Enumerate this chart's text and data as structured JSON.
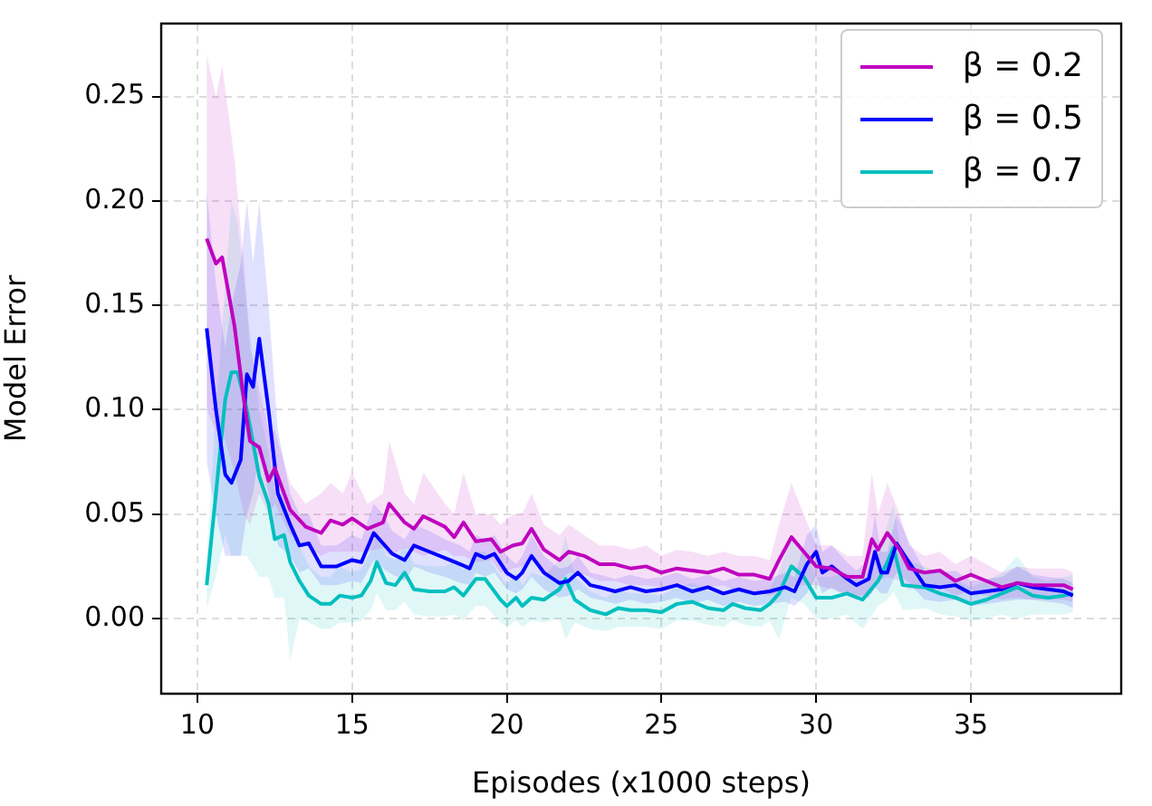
{
  "chart_data": {
    "type": "line",
    "xlabel": "Episodes (x1000 steps)",
    "ylabel": "Model Error",
    "xlim": [
      8.83,
      39.86
    ],
    "ylim": [
      -0.036,
      0.285
    ],
    "xticks": [
      10,
      15,
      20,
      25,
      30,
      35
    ],
    "yticks": [
      {
        "value": 0,
        "label": "0.00"
      },
      {
        "value": 0.05,
        "label": "0.05"
      },
      {
        "value": 0.1,
        "label": "0.10"
      },
      {
        "value": 0.15,
        "label": "0.15"
      },
      {
        "value": 0.2,
        "label": "0.20"
      },
      {
        "value": 0.25,
        "label": "0.25"
      }
    ],
    "grid": true,
    "legend": "top right",
    "line_style": "solid",
    "marker": "none",
    "series": [
      {
        "name": "β = 0.2",
        "color": "#bf00bf",
        "x": [
          10.3,
          10.6,
          10.8,
          11.2,
          11.5,
          11.7,
          12.0,
          12.3,
          12.5,
          13,
          13.5,
          14,
          14.3,
          14.7,
          15,
          15.5,
          16,
          16.2,
          16.7,
          17,
          17.3,
          18,
          18.3,
          18.6,
          19,
          19.5,
          19.8,
          20.2,
          20.5,
          20.8,
          21.2,
          21.7,
          22,
          22.5,
          23,
          23.5,
          24,
          24.5,
          25,
          25.5,
          26,
          26.5,
          27,
          27.5,
          28,
          28.5,
          28.8,
          29.2,
          29.6,
          30,
          30.5,
          31,
          31.5,
          31.8,
          32,
          32.3,
          32.7,
          33,
          33.5,
          34,
          34.5,
          35,
          35.5,
          36,
          36.5,
          37,
          37.5,
          38,
          38.3
        ],
        "values": [
          0.182,
          0.17,
          0.173,
          0.14,
          0.105,
          0.085,
          0.082,
          0.066,
          0.072,
          0.052,
          0.044,
          0.041,
          0.047,
          0.045,
          0.048,
          0.043,
          0.046,
          0.055,
          0.046,
          0.043,
          0.049,
          0.044,
          0.039,
          0.046,
          0.037,
          0.038,
          0.032,
          0.035,
          0.036,
          0.043,
          0.033,
          0.028,
          0.032,
          0.03,
          0.026,
          0.026,
          0.024,
          0.025,
          0.022,
          0.024,
          0.023,
          0.022,
          0.024,
          0.021,
          0.021,
          0.019,
          0.028,
          0.039,
          0.032,
          0.025,
          0.024,
          0.02,
          0.02,
          0.038,
          0.033,
          0.041,
          0.033,
          0.024,
          0.022,
          0.023,
          0.018,
          0.021,
          0.018,
          0.015,
          0.017,
          0.016,
          0.016,
          0.016,
          0.014
        ],
        "upper": [
          0.27,
          0.25,
          0.265,
          0.22,
          0.17,
          0.13,
          0.11,
          0.09,
          0.09,
          0.065,
          0.055,
          0.06,
          0.065,
          0.06,
          0.07,
          0.055,
          0.06,
          0.085,
          0.06,
          0.055,
          0.07,
          0.055,
          0.05,
          0.07,
          0.05,
          0.05,
          0.045,
          0.05,
          0.05,
          0.06,
          0.045,
          0.04,
          0.045,
          0.04,
          0.035,
          0.035,
          0.033,
          0.035,
          0.03,
          0.033,
          0.032,
          0.03,
          0.032,
          0.03,
          0.03,
          0.028,
          0.045,
          0.065,
          0.05,
          0.035,
          0.035,
          0.03,
          0.03,
          0.07,
          0.05,
          0.065,
          0.05,
          0.035,
          0.03,
          0.032,
          0.026,
          0.03,
          0.026,
          0.022,
          0.025,
          0.024,
          0.024,
          0.024,
          0.022
        ],
        "lower": [
          0.1,
          0.09,
          0.09,
          0.07,
          0.05,
          0.045,
          0.06,
          0.05,
          0.055,
          0.04,
          0.035,
          0.03,
          0.032,
          0.032,
          0.032,
          0.032,
          0.034,
          0.03,
          0.034,
          0.032,
          0.03,
          0.033,
          0.03,
          0.03,
          0.027,
          0.028,
          0.022,
          0.024,
          0.025,
          0.028,
          0.023,
          0.018,
          0.022,
          0.021,
          0.018,
          0.018,
          0.016,
          0.016,
          0.015,
          0.016,
          0.015,
          0.015,
          0.016,
          0.013,
          0.013,
          0.011,
          0.012,
          0.015,
          0.016,
          0.016,
          0.014,
          0.011,
          0.011,
          0.012,
          0.018,
          0.02,
          0.018,
          0.014,
          0.014,
          0.015,
          0.011,
          0.013,
          0.011,
          0.009,
          0.01,
          0.009,
          0.009,
          0.009,
          0.008
        ]
      },
      {
        "name": "β = 0.5",
        "color": "#0000ff",
        "x": [
          10.3,
          10.6,
          10.9,
          11.1,
          11.4,
          11.6,
          11.8,
          12.0,
          12.3,
          12.6,
          13,
          13.3,
          13.6,
          14,
          14.5,
          15,
          15.3,
          15.7,
          16,
          16.3,
          16.7,
          17,
          17.5,
          18,
          18.5,
          18.8,
          19,
          19.3,
          19.6,
          20,
          20.3,
          20.5,
          20.8,
          21.2,
          21.7,
          22,
          22.3,
          22.7,
          23,
          23.5,
          24,
          24.5,
          25,
          25.5,
          26,
          26.5,
          27,
          27.5,
          28,
          28.5,
          29,
          29.3,
          29.7,
          30,
          30.2,
          30.5,
          31,
          31.3,
          31.7,
          31.9,
          32.1,
          32.3,
          32.6,
          33,
          33.5,
          34,
          34.5,
          35,
          35.5,
          36,
          36.5,
          37,
          37.5,
          38,
          38.3
        ],
        "values": [
          0.139,
          0.1,
          0.069,
          0.065,
          0.076,
          0.117,
          0.111,
          0.134,
          0.1,
          0.06,
          0.045,
          0.035,
          0.036,
          0.025,
          0.025,
          0.028,
          0.027,
          0.041,
          0.036,
          0.031,
          0.028,
          0.035,
          0.032,
          0.029,
          0.026,
          0.024,
          0.031,
          0.029,
          0.031,
          0.022,
          0.019,
          0.022,
          0.03,
          0.022,
          0.017,
          0.018,
          0.022,
          0.016,
          0.015,
          0.013,
          0.015,
          0.013,
          0.014,
          0.016,
          0.013,
          0.015,
          0.012,
          0.014,
          0.012,
          0.013,
          0.015,
          0.013,
          0.026,
          0.032,
          0.022,
          0.025,
          0.019,
          0.016,
          0.019,
          0.032,
          0.022,
          0.022,
          0.036,
          0.027,
          0.016,
          0.015,
          0.016,
          0.012,
          0.013,
          0.014,
          0.017,
          0.015,
          0.014,
          0.013,
          0.011
        ],
        "upper": [
          0.205,
          0.16,
          0.13,
          0.15,
          0.17,
          0.2,
          0.17,
          0.2,
          0.15,
          0.09,
          0.06,
          0.05,
          0.05,
          0.035,
          0.035,
          0.04,
          0.038,
          0.055,
          0.05,
          0.042,
          0.038,
          0.045,
          0.042,
          0.038,
          0.035,
          0.032,
          0.04,
          0.038,
          0.04,
          0.03,
          0.026,
          0.03,
          0.04,
          0.03,
          0.024,
          0.025,
          0.03,
          0.022,
          0.021,
          0.019,
          0.021,
          0.019,
          0.02,
          0.022,
          0.019,
          0.021,
          0.018,
          0.02,
          0.018,
          0.019,
          0.022,
          0.02,
          0.04,
          0.045,
          0.032,
          0.035,
          0.027,
          0.023,
          0.028,
          0.05,
          0.032,
          0.032,
          0.05,
          0.037,
          0.023,
          0.022,
          0.023,
          0.018,
          0.019,
          0.02,
          0.025,
          0.021,
          0.02,
          0.019,
          0.017
        ],
        "lower": [
          0.075,
          0.05,
          0.03,
          0.03,
          0.03,
          0.05,
          0.06,
          0.08,
          0.06,
          0.035,
          0.03,
          0.022,
          0.024,
          0.016,
          0.016,
          0.018,
          0.017,
          0.028,
          0.024,
          0.021,
          0.018,
          0.025,
          0.022,
          0.02,
          0.017,
          0.016,
          0.022,
          0.02,
          0.022,
          0.014,
          0.012,
          0.014,
          0.02,
          0.014,
          0.01,
          0.011,
          0.014,
          0.01,
          0.009,
          0.007,
          0.009,
          0.007,
          0.008,
          0.01,
          0.007,
          0.009,
          0.006,
          0.008,
          0.006,
          0.007,
          0.008,
          0.006,
          0.012,
          0.02,
          0.012,
          0.015,
          0.011,
          0.009,
          0.01,
          0.015,
          0.012,
          0.012,
          0.022,
          0.017,
          0.009,
          0.008,
          0.009,
          0.006,
          0.007,
          0.008,
          0.009,
          0.009,
          0.008,
          0.007,
          0.005
        ]
      },
      {
        "name": "β = 0.7",
        "color": "#00bfbf",
        "x": [
          10.3,
          10.6,
          10.9,
          11.1,
          11.3,
          11.6,
          12.0,
          12.3,
          12.5,
          12.8,
          13,
          13.3,
          13.6,
          14,
          14.3,
          14.6,
          15,
          15.3,
          15.6,
          15.8,
          16.1,
          16.4,
          16.7,
          17,
          17.5,
          18,
          18.3,
          18.6,
          19,
          19.3,
          19.8,
          20,
          20.3,
          20.5,
          20.8,
          21.2,
          21.7,
          21.9,
          22.2,
          22.7,
          23.2,
          23.6,
          24,
          24.5,
          25,
          25.5,
          26,
          26.5,
          27,
          27.3,
          27.7,
          28.2,
          28.5,
          28.8,
          29.2,
          29.6,
          30,
          30.5,
          31,
          31.5,
          32,
          32.3,
          32.5,
          32.8,
          33.5,
          34,
          34.5,
          35,
          35.5,
          36,
          36.5,
          37,
          37.5,
          38,
          38.3
        ],
        "values": [
          0.016,
          0.06,
          0.105,
          0.118,
          0.118,
          0.1,
          0.068,
          0.055,
          0.038,
          0.04,
          0.027,
          0.018,
          0.011,
          0.007,
          0.007,
          0.011,
          0.01,
          0.011,
          0.018,
          0.027,
          0.017,
          0.016,
          0.022,
          0.014,
          0.013,
          0.013,
          0.015,
          0.011,
          0.019,
          0.019,
          0.009,
          0.006,
          0.01,
          0.006,
          0.01,
          0.009,
          0.014,
          0.019,
          0.009,
          0.004,
          0.002,
          0.005,
          0.004,
          0.004,
          0.003,
          0.007,
          0.008,
          0.005,
          0.004,
          0.007,
          0.005,
          0.004,
          0.007,
          0.012,
          0.025,
          0.02,
          0.01,
          0.01,
          0.012,
          0.009,
          0.018,
          0.027,
          0.034,
          0.016,
          0.015,
          0.012,
          0.01,
          0.007,
          0.009,
          0.012,
          0.015,
          0.011,
          0.01,
          0.011,
          0.012
        ],
        "upper": [
          0.03,
          0.1,
          0.16,
          0.2,
          0.19,
          0.15,
          0.1,
          0.08,
          0.06,
          0.06,
          0.045,
          0.035,
          0.025,
          0.02,
          0.02,
          0.025,
          0.022,
          0.024,
          0.032,
          0.042,
          0.03,
          0.028,
          0.035,
          0.026,
          0.025,
          0.025,
          0.028,
          0.023,
          0.032,
          0.032,
          0.02,
          0.016,
          0.022,
          0.016,
          0.022,
          0.02,
          0.028,
          0.04,
          0.02,
          0.013,
          0.01,
          0.014,
          0.012,
          0.012,
          0.011,
          0.015,
          0.017,
          0.013,
          0.012,
          0.015,
          0.013,
          0.012,
          0.015,
          0.022,
          0.04,
          0.033,
          0.02,
          0.02,
          0.022,
          0.018,
          0.03,
          0.045,
          0.055,
          0.028,
          0.025,
          0.022,
          0.019,
          0.015,
          0.018,
          0.022,
          0.03,
          0.02,
          0.018,
          0.02,
          0.021
        ],
        "lower": [
          0.005,
          0.02,
          0.04,
          0.03,
          0.03,
          0.03,
          0.02,
          0.02,
          0.01,
          0.01,
          -0.02,
          0.0,
          -0.002,
          -0.005,
          -0.005,
          -0.002,
          -0.002,
          -0.001,
          0.004,
          0.012,
          0.004,
          0.004,
          0.008,
          0.002,
          0.001,
          0.001,
          0.002,
          -0.001,
          0.006,
          0.006,
          -0.002,
          -0.004,
          -0.001,
          -0.004,
          -0.001,
          -0.002,
          0.0,
          -0.01,
          -0.002,
          -0.005,
          -0.006,
          -0.004,
          -0.004,
          -0.004,
          -0.005,
          -0.001,
          -0.001,
          -0.003,
          -0.004,
          -0.001,
          -0.003,
          -0.004,
          -0.001,
          -0.01,
          0.01,
          0.007,
          0.0,
          0.0,
          0.002,
          -0.005,
          0.006,
          0.009,
          0.013,
          0.004,
          0.005,
          0.002,
          0.001,
          -0.001,
          0.0,
          0.002,
          0.0,
          0.002,
          0.002,
          0.002,
          0.003
        ]
      }
    ]
  }
}
